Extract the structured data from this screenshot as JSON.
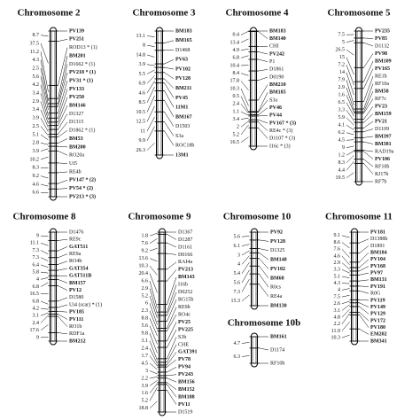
{
  "maps": [
    {
      "title": "Chromosome 2",
      "markers": [
        {
          "name": "PV139",
          "bold": true
        },
        {
          "name": "PV251",
          "bold": true
        },
        {
          "name": "ROD13 * (1)",
          "bold": false
        },
        {
          "name": "BM201",
          "bold": true
        },
        {
          "name": "D1662 * (1)",
          "bold": false
        },
        {
          "name": "PV218 * (1)",
          "bold": true
        },
        {
          "name": "PV31 * (1)",
          "bold": true
        },
        {
          "name": "PV133",
          "bold": true
        },
        {
          "name": "PV250",
          "bold": true
        },
        {
          "name": "BM146",
          "bold": true
        },
        {
          "name": "D1327",
          "bold": false
        },
        {
          "name": "D1315",
          "bold": false
        },
        {
          "name": "D1862 * (1)",
          "bold": false
        },
        {
          "name": "BM53",
          "bold": true
        },
        {
          "name": "BM200",
          "bold": true
        },
        {
          "name": "RO20a",
          "bold": false
        },
        {
          "name": "Ui5",
          "bold": false
        },
        {
          "name": "RE4b",
          "bold": false
        },
        {
          "name": "PV147 * (2)",
          "bold": true
        },
        {
          "name": "PV54 * (2)",
          "bold": true
        },
        {
          "name": "PV213 * (3)",
          "bold": true
        }
      ],
      "distances": [
        8.7,
        37.5,
        11.2,
        4.3,
        2.5,
        5.6,
        4.2,
        3.4,
        2.9,
        3.4,
        3.9,
        2.5,
        5.1,
        2.8,
        3.9,
        10.2,
        8.3,
        9.2,
        4.6,
        6.6
      ]
    },
    {
      "title": "Chromosome 3",
      "markers": [
        {
          "name": "BM183",
          "bold": true
        },
        {
          "name": "BM165",
          "bold": true
        },
        {
          "name": "D1468",
          "bold": false
        },
        {
          "name": "PV63",
          "bold": true
        },
        {
          "name": "PV102",
          "bold": true
        },
        {
          "name": "PV128",
          "bold": true
        },
        {
          "name": "BM211",
          "bold": true
        },
        {
          "name": "PV45",
          "bold": true
        },
        {
          "name": "11M1",
          "bold": true
        },
        {
          "name": "BM167",
          "bold": true
        },
        {
          "name": "D1503",
          "bold": false
        },
        {
          "name": "S3a",
          "bold": false
        },
        {
          "name": "ROC18b",
          "bold": false
        },
        {
          "name": "13M1",
          "bold": true
        }
      ],
      "distances": [
        13.1,
        8.0,
        14.8,
        3.9,
        5.5,
        6.9,
        4.6,
        8.5,
        10.5,
        12.5,
        11.0,
        9.9,
        26.3
      ]
    },
    {
      "title": "Chromosome 4",
      "markers": [
        {
          "name": "BM183",
          "bold": true
        },
        {
          "name": "BM140",
          "bold": true
        },
        {
          "name": "CHI",
          "bold": false
        },
        {
          "name": "PV242",
          "bold": true
        },
        {
          "name": "P1",
          "bold": false
        },
        {
          "name": "D1861",
          "bold": false
        },
        {
          "name": "D0190",
          "bold": false
        },
        {
          "name": "BM210",
          "bold": true
        },
        {
          "name": "BM185",
          "bold": true
        },
        {
          "name": "S3a",
          "bold": false
        },
        {
          "name": "PV46",
          "bold": true
        },
        {
          "name": "PV44",
          "bold": true
        },
        {
          "name": "PV167 * (3)",
          "bold": true
        },
        {
          "name": "RE4c * (3)",
          "bold": false
        },
        {
          "name": "D1107 * (3)",
          "bold": false
        },
        {
          "name": "I16c * (3)",
          "bold": false
        }
      ],
      "distances": [
        0.4,
        13.4,
        4.9,
        6.8,
        10.4,
        8.4,
        17.8,
        10.3,
        0.5,
        2.4,
        1.1,
        3.4,
        2.0,
        5.2,
        16.5
      ]
    },
    {
      "title": "Chromosome 5",
      "markers": [
        {
          "name": "PV235",
          "bold": true
        },
        {
          "name": "PV85",
          "bold": true
        },
        {
          "name": "D1132",
          "bold": false
        },
        {
          "name": "PV98",
          "bold": true
        },
        {
          "name": "BM109",
          "bold": true
        },
        {
          "name": "PV165",
          "bold": true
        },
        {
          "name": "RE1b",
          "bold": false
        },
        {
          "name": "RF10a",
          "bold": false
        },
        {
          "name": "BM58",
          "bold": true
        },
        {
          "name": "RF7c",
          "bold": false
        },
        {
          "name": "PV23",
          "bold": true
        },
        {
          "name": "BM159",
          "bold": true
        },
        {
          "name": "PV21",
          "bold": true
        },
        {
          "name": "D1109",
          "bold": false
        },
        {
          "name": "BM397",
          "bold": true
        },
        {
          "name": "BM381",
          "bold": true
        },
        {
          "name": "RAD19a",
          "bold": false
        },
        {
          "name": "PV106",
          "bold": true
        },
        {
          "name": "RF10b",
          "bold": false
        },
        {
          "name": "RJ17b",
          "bold": false
        },
        {
          "name": "RF7b",
          "bold": false
        }
      ],
      "distances": [
        7.5,
        5.0,
        26.5,
        15.0,
        7.2,
        14.0,
        7.9,
        2.9,
        1.6,
        6.5,
        3.3,
        5.9,
        4.1,
        6.2,
        4.5,
        9.0,
        1.2,
        8.3,
        4.4,
        19.5
      ]
    },
    {
      "title": "Chromosome 8",
      "markers": [
        {
          "name": "D1476",
          "bold": false
        },
        {
          "name": "RE9c",
          "bold": false
        },
        {
          "name": "GAT511",
          "bold": true
        },
        {
          "name": "RE9a",
          "bold": false
        },
        {
          "name": "RO4b",
          "bold": false
        },
        {
          "name": "GAT354",
          "bold": true
        },
        {
          "name": "GAT511B",
          "bold": true
        },
        {
          "name": "BM157",
          "bold": true
        },
        {
          "name": "PV12",
          "bold": true
        },
        {
          "name": "D1580",
          "bold": false
        },
        {
          "name": "Ui4 (scar) * (1)",
          "bold": false
        },
        {
          "name": "PV185",
          "bold": true
        },
        {
          "name": "PV111",
          "bold": true
        },
        {
          "name": "RO1b",
          "bold": false
        },
        {
          "name": "RDF1a",
          "bold": false
        },
        {
          "name": "BM212",
          "bold": true
        }
      ],
      "distances": [
        9.0,
        11.1,
        7.3,
        7.3,
        6.4,
        5.8,
        4.0,
        6.8,
        16.5,
        6.8,
        4.2,
        3.1,
        2.4,
        17.6,
        9.0
      ]
    },
    {
      "title": "Chromosome 9",
      "markers": [
        {
          "name": "D1367",
          "bold": false
        },
        {
          "name": "D1287",
          "bold": false
        },
        {
          "name": "D1161",
          "bold": false
        },
        {
          "name": "D0166",
          "bold": false
        },
        {
          "name": "RAI4a",
          "bold": false
        },
        {
          "name": "PV213",
          "bold": true
        },
        {
          "name": "BM143",
          "bold": true
        },
        {
          "name": "I16b",
          "bold": false
        },
        {
          "name": "D0252",
          "bold": false
        },
        {
          "name": "RG15b",
          "bold": false
        },
        {
          "name": "RE9b",
          "bold": false
        },
        {
          "name": "RO4c",
          "bold": false
        },
        {
          "name": "PV25",
          "bold": true
        },
        {
          "name": "PV225",
          "bold": true
        },
        {
          "name": "S3b",
          "bold": false
        },
        {
          "name": "CHE",
          "bold": false
        },
        {
          "name": "GAT391",
          "bold": true
        },
        {
          "name": "PV78",
          "bold": true
        },
        {
          "name": "PV94",
          "bold": true
        },
        {
          "name": "PV243",
          "bold": true
        },
        {
          "name": "BM156",
          "bold": true
        },
        {
          "name": "BM152",
          "bold": true
        },
        {
          "name": "BM188",
          "bold": true
        },
        {
          "name": "PV11",
          "bold": true
        },
        {
          "name": "D1519",
          "bold": false
        }
      ],
      "distances": [
        1.8,
        7.6,
        9.2,
        13.6,
        10.3,
        20.4,
        6.6,
        2.9,
        5.2,
        6.0,
        2.3,
        8.8,
        5.6,
        9.8,
        3.1,
        2.4,
        1.7,
        4.5,
        3.0,
        2.2,
        3.9,
        1.6,
        5.2,
        18.8
      ]
    },
    {
      "title": "Chromosome 10",
      "markers": [
        {
          "name": "PV92",
          "bold": true
        },
        {
          "name": "PV128",
          "bold": true
        },
        {
          "name": "D1325",
          "bold": false
        },
        {
          "name": "BM140",
          "bold": true
        },
        {
          "name": "PV102",
          "bold": true
        },
        {
          "name": "BM68",
          "bold": true
        },
        {
          "name": "R0cs",
          "bold": false
        },
        {
          "name": "RE4a",
          "bold": false
        },
        {
          "name": "BM130",
          "bold": true
        }
      ],
      "distances": [
        5.6,
        6.1,
        3.0,
        4.0,
        5.4,
        5.6,
        7.3,
        15.3
      ]
    },
    {
      "title": "Chromosome 10b",
      "markers": [
        {
          "name": "BM161",
          "bold": true
        },
        {
          "name": "D1174",
          "bold": false
        },
        {
          "name": "RF10b",
          "bold": false
        }
      ],
      "distances": [
        4.7,
        6.3
      ]
    },
    {
      "title": "Chromosome 11",
      "markers": [
        {
          "name": "PV181",
          "bold": true
        },
        {
          "name": "D1388b",
          "bold": false
        },
        {
          "name": "D1891",
          "bold": false
        },
        {
          "name": "BM184",
          "bold": true
        },
        {
          "name": "PV104",
          "bold": true
        },
        {
          "name": "PV168",
          "bold": true
        },
        {
          "name": "PV97",
          "bold": true
        },
        {
          "name": "BM131",
          "bold": true
        },
        {
          "name": "PV191",
          "bold": true
        },
        {
          "name": "R0G",
          "bold": false
        },
        {
          "name": "PV119",
          "bold": true
        },
        {
          "name": "PV149",
          "bold": true
        },
        {
          "name": "PV129",
          "bold": true
        },
        {
          "name": "PV172",
          "bold": true
        },
        {
          "name": "PV180",
          "bold": true
        },
        {
          "name": "EM202",
          "bold": true
        },
        {
          "name": "BM341",
          "bold": true
        }
      ],
      "distances": [
        9.1,
        8.6,
        7.6,
        4.6,
        2.9,
        3.3,
        5.1,
        4.3,
        4.0,
        7.5,
        2.6,
        3.1,
        4.8,
        2.2,
        11.9,
        10.3
      ]
    }
  ]
}
